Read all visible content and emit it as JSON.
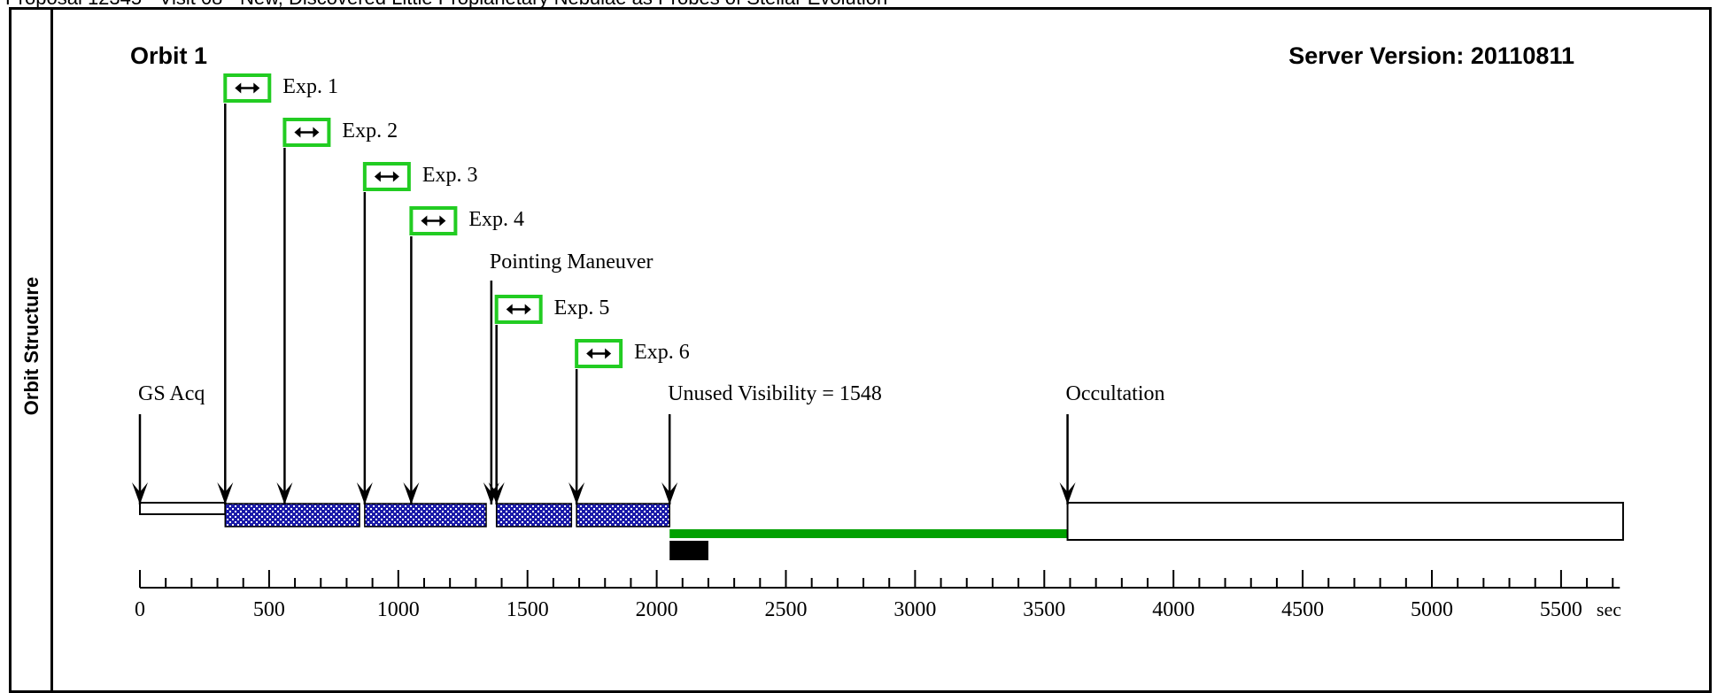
{
  "header": {
    "caption": "Proposal 12345 - Visit 08 - New, Discovered Little Proplanetary Nebulae as Probes of Stellar Evolution",
    "side_label": "Orbit Structure",
    "orbit_title": "Orbit 1",
    "server_version": "Server Version: 20110811"
  },
  "chart_data": {
    "type": "timeline",
    "axis": {
      "min": 0,
      "max": 5700,
      "unit": "sec",
      "major_ticks": [
        0,
        500,
        1000,
        1500,
        2000,
        2500,
        3000,
        3500,
        4000,
        4500,
        5000,
        5500
      ],
      "minor_step": 100
    },
    "events": [
      {
        "label": "GS Acq",
        "t": 0
      },
      {
        "label": "Exp. 1",
        "t": 330
      },
      {
        "label": "Exp. 2",
        "t": 560
      },
      {
        "label": "Exp. 3",
        "t": 870
      },
      {
        "label": "Exp. 4",
        "t": 1050
      },
      {
        "label": "Pointing Maneuver",
        "t": 1360
      },
      {
        "label": "Exp. 5",
        "t": 1380
      },
      {
        "label": "Exp. 6",
        "t": 1690
      },
      {
        "label": "Unused Visibility = 1548",
        "t": 2050
      },
      {
        "label": "Occultation",
        "t": 3590
      }
    ],
    "exposure_segments": [
      {
        "start": 330,
        "end": 850
      },
      {
        "start": 870,
        "end": 1340
      },
      {
        "start": 1380,
        "end": 1670
      },
      {
        "start": 1690,
        "end": 2050
      }
    ],
    "acq_segment": {
      "start": 0,
      "end": 330
    },
    "unused_visibility": {
      "start": 2050,
      "end": 3590
    },
    "buffer_block": {
      "start": 2050,
      "end": 2200
    },
    "occultation_segment": {
      "start": 3590,
      "end": 5740
    },
    "colors": {
      "exposure_fill": "#1a1aa8",
      "unused": "#00a000",
      "exposure_box": "#22cc22",
      "frame": "#000000"
    }
  }
}
